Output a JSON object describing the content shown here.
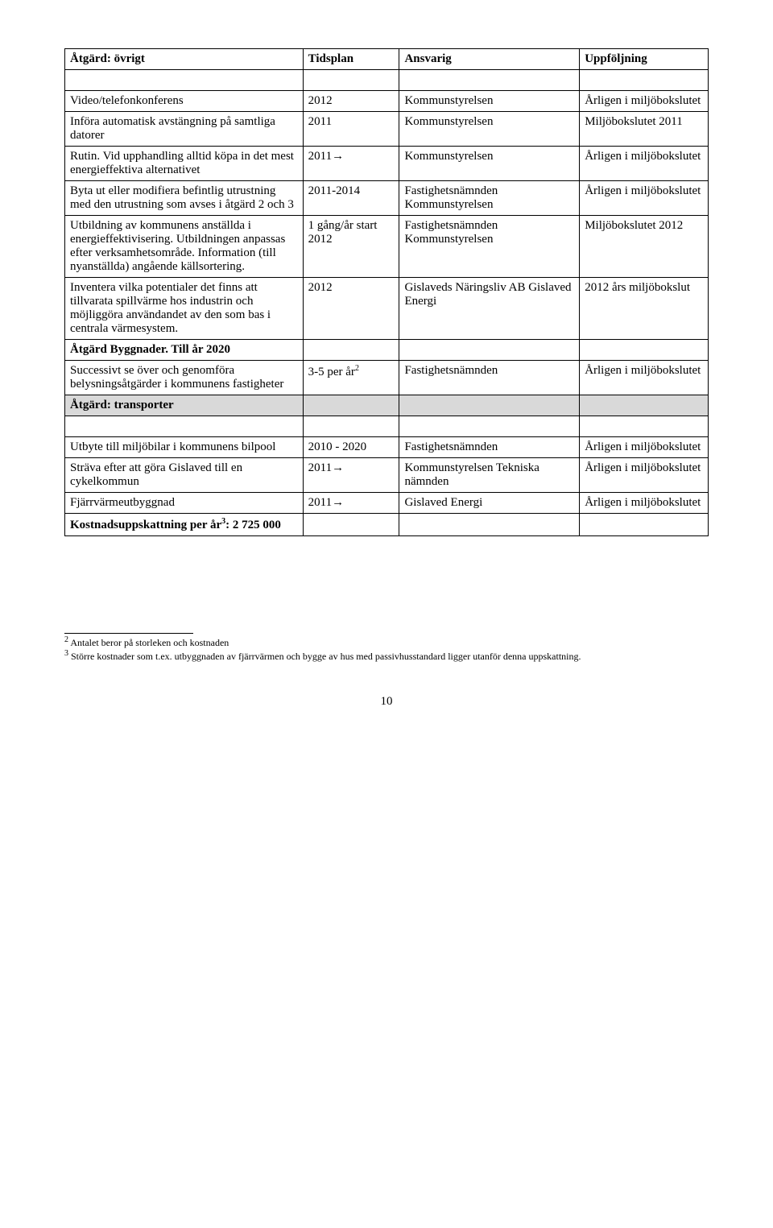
{
  "header": {
    "c1": "Åtgärd: övrigt",
    "c2": "Tidsplan",
    "c3": "Ansvarig",
    "c4": "Uppföljning"
  },
  "rows": {
    "r1": {
      "c1": "Video/telefonkonferens",
      "c2": "2012",
      "c3": "Kommunstyrelsen",
      "c4": "Årligen i miljöbokslutet"
    },
    "r2": {
      "c1": "Införa automatisk avstängning på samtliga datorer",
      "c2": "2011",
      "c3": "Kommunstyrelsen",
      "c4": "Miljöbokslutet 2011"
    },
    "r3": {
      "c1": "Rutin. Vid upphandling alltid köpa in det mest energieffektiva alternativet",
      "c2": "2011→",
      "c3": "Kommunstyrelsen",
      "c4": "Årligen i miljöbokslutet"
    },
    "r4": {
      "c1": "Byta ut eller modifiera befintlig utrustning med den utrustning som avses i åtgärd 2 och 3",
      "c2": "2011-2014",
      "c3": "Fastighetsnämnden Kommunstyrelsen",
      "c4": "Årligen i miljöbokslutet"
    },
    "r5": {
      "c1": "Utbildning av kommunens anställda i energieffektivisering. Utbildningen anpassas efter verksamhetsområde. Information (till nyanställda) angående källsortering.",
      "c2": "1 gång/år start 2012",
      "c3": "Fastighetsnämnden Kommunstyrelsen",
      "c4": "Miljöbokslutet 2012"
    },
    "r6": {
      "c1": "Inventera vilka potentialer det finns att tillvarata spillvärme hos industrin och möjliggöra användandet av den som bas i centrala värmesystem.",
      "c2": "2012",
      "c3": "Gislaveds Näringsliv AB Gislaved Energi",
      "c4": "2012 års miljöbokslut"
    },
    "r7": {
      "c1": "Åtgärd Byggnader. Till år 2020"
    },
    "r8": {
      "c1": "Successivt se över och genomföra belysningsåtgärder i kommunens fastigheter",
      "c2_pre": "3-5 per år",
      "c2_sup": "2",
      "c3": "Fastighetsnämnden",
      "c4": "Årligen i miljöbokslutet"
    },
    "r9": {
      "c1": "Åtgärd: transporter"
    },
    "r10": {
      "c1": "Utbyte till miljöbilar i kommunens bilpool",
      "c2": "2010 - 2020",
      "c3": "Fastighetsnämnden",
      "c4": "Årligen i miljöbokslutet"
    },
    "r11": {
      "c1": "Sträva efter att göra Gislaved till en cykelkommun",
      "c2": "2011→",
      "c3": "Kommunstyrelsen Tekniska nämnden",
      "c4": "Årligen i miljöbokslutet"
    },
    "r12": {
      "c1": "Fjärrvärmeutbyggnad",
      "c2": "2011→",
      "c3": "Gislaved Energi",
      "c4": "Årligen i miljöbokslutet"
    },
    "r13": {
      "c1_pre": "Kostnadsuppskattning per år",
      "c1_sup": "3",
      "c1_post": ": 2 725 000"
    }
  },
  "footnotes": {
    "f2_num": "2",
    "f2_text": " Antalet beror på storleken och kostnaden",
    "f3_num": "3",
    "f3_text": " Större kostnader som t.ex. utbyggnaden av fjärrvärmen och bygge av hus med passivhusstandard ligger utanför denna uppskattning."
  },
  "pagenum": "10"
}
